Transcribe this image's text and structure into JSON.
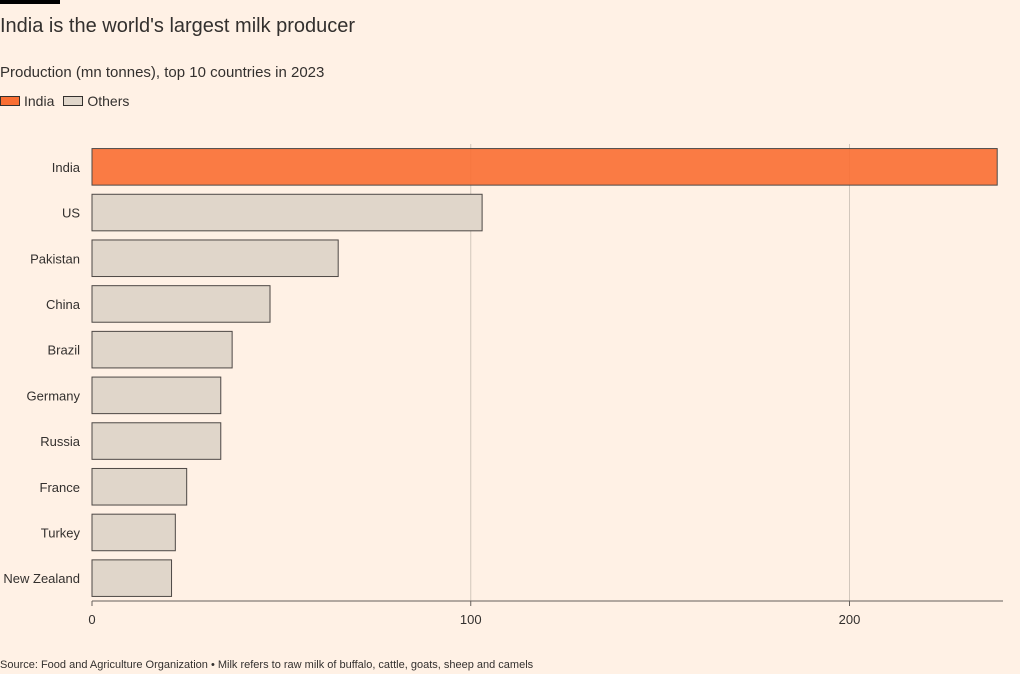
{
  "header": {
    "title": "India is the world's largest milk producer",
    "subtitle": "Production (mn tonnes), top 10 countries in 2023"
  },
  "legend": [
    {
      "label": "India",
      "color": "#f96e32"
    },
    {
      "label": "Others",
      "color": "#e0d6ca"
    }
  ],
  "chart_data": {
    "type": "bar",
    "orientation": "horizontal",
    "title": "India is the world's largest milk producer",
    "subtitle": "Production (mn tonnes), top 10 countries in 2023",
    "categories": [
      "India",
      "US",
      "Pakistan",
      "China",
      "Brazil",
      "Germany",
      "Russia",
      "France",
      "Turkey",
      "New Zealand"
    ],
    "values": [
      239,
      103,
      65,
      47,
      37,
      34,
      34,
      25,
      22,
      21
    ],
    "highlight": "India",
    "highlight_color": "#f96e32",
    "other_color": "#e0d6ca",
    "xlim": [
      0,
      240
    ],
    "xticks": [
      0,
      100,
      200
    ],
    "grid": true,
    "legend_position": "top-left"
  },
  "footer": {
    "source": "Source: Food and Agriculture Organization • Milk refers to raw milk of buffalo, cattle, goats, sheep and camels"
  }
}
